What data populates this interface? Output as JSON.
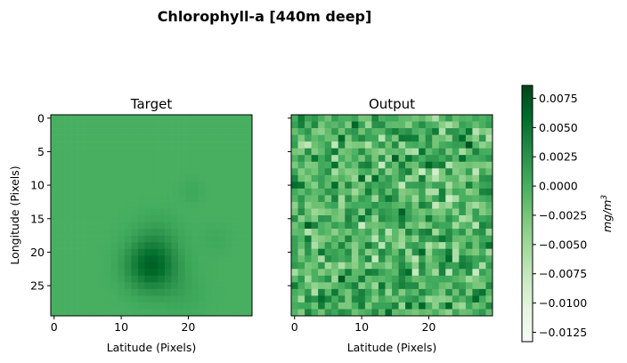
{
  "chart_data": {
    "type": "heatmap",
    "title": "Chlorophyll-a [440m deep]",
    "colormap": "Greens",
    "panels": [
      {
        "title": "Target",
        "xlabel": "Latitude (Pixels)",
        "ylabel": "Longitude (Pixels)",
        "x_ticks": [
          0,
          10,
          20
        ],
        "y_ticks": [
          0,
          5,
          10,
          15,
          20,
          25
        ],
        "grid_size": [
          30,
          30
        ],
        "x_range": [
          -0.5,
          29.5
        ],
        "y_range": [
          29.5,
          -0.5
        ],
        "background_value": 0.0,
        "features": [
          {
            "row": 22,
            "col": 14.5,
            "value": 0.0065,
            "radius": 2.6,
            "desc": "dark blob"
          },
          {
            "row": 17.5,
            "col": 15.5,
            "value": 0.0012,
            "radius": 2.4
          },
          {
            "row": 26,
            "col": 19,
            "value": 0.0008,
            "radius": 2.5
          },
          {
            "row": 11,
            "col": 20.5,
            "value": 0.0007,
            "radius": 1.2
          },
          {
            "row": 18,
            "col": 24,
            "value": 0.0006,
            "radius": 1.6
          }
        ]
      },
      {
        "title": "Output",
        "xlabel": "Latitude (Pixels)",
        "x_ticks": [
          0,
          10,
          20
        ],
        "grid_size": [
          30,
          30
        ],
        "value_range": [
          -0.0125,
          0.0085
        ],
        "pattern": "random noise"
      }
    ],
    "colorbar": {
      "label": "mg/m",
      "label_superscript": "3",
      "min": -0.0133,
      "max": 0.0086,
      "ticks": [
        "0.0075",
        "0.0050",
        "0.0025",
        "0.0000",
        "−0.0025",
        "−0.0050",
        "−0.0075",
        "−0.0100",
        "−0.0125"
      ],
      "tick_values": [
        0.0075,
        0.005,
        0.0025,
        0.0,
        -0.0025,
        -0.005,
        -0.0075,
        -0.01,
        -0.0125
      ]
    }
  }
}
